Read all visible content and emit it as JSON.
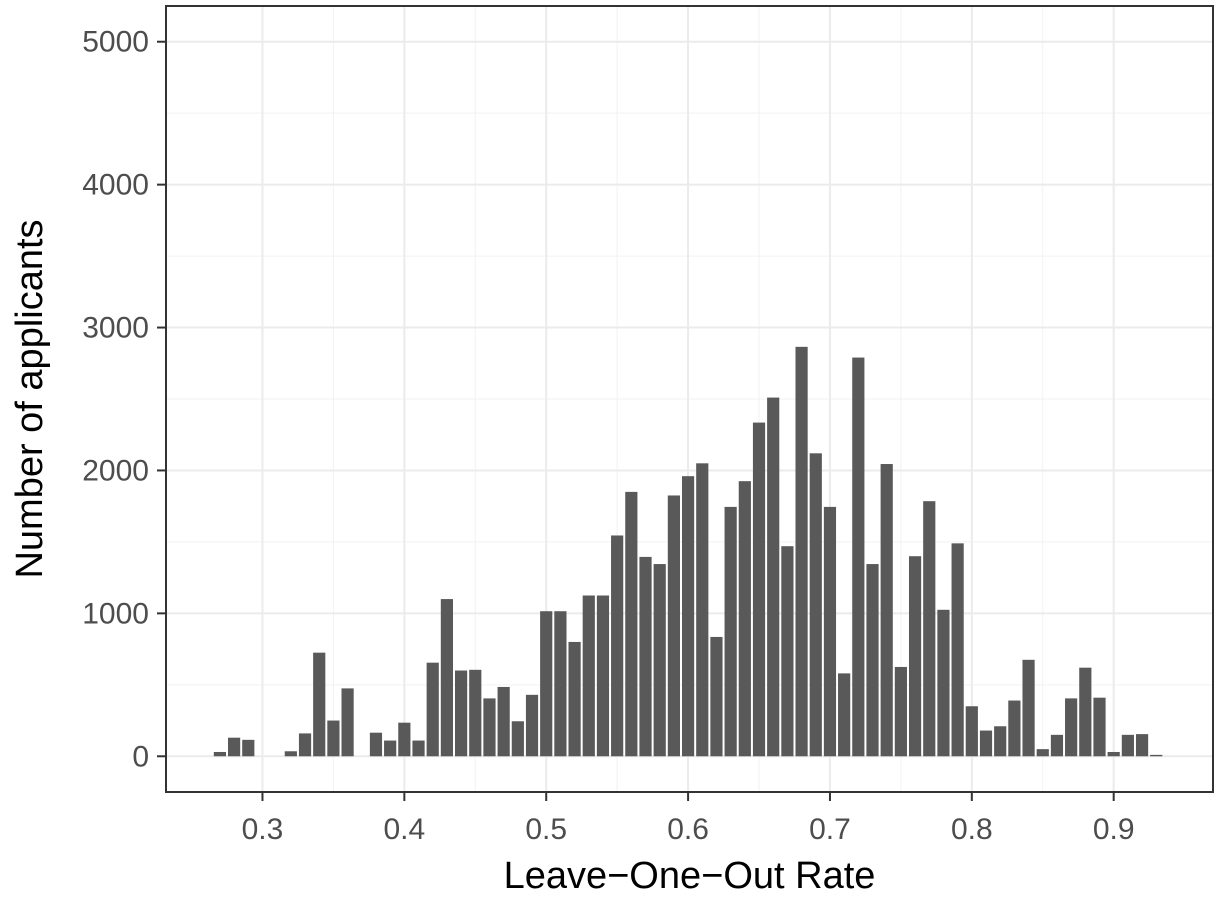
{
  "chart_data": {
    "type": "bar",
    "title": "",
    "xlabel": "Leave−One−Out Rate",
    "ylabel": "Number of applicants",
    "xlim": [
      0.232,
      0.97
    ],
    "ylim": [
      -250,
      5250
    ],
    "x_ticks": [
      0.3,
      0.4,
      0.5,
      0.6,
      0.7,
      0.8,
      0.9
    ],
    "x_tick_labels": [
      "0.3",
      "0.4",
      "0.5",
      "0.6",
      "0.7",
      "0.8",
      "0.9"
    ],
    "y_ticks": [
      0,
      1000,
      2000,
      3000,
      4000,
      5000
    ],
    "y_tick_labels": [
      "0",
      "1000",
      "2000",
      "3000",
      "4000",
      "5000"
    ],
    "bar_width": 0.01,
    "grid": true,
    "bar_color": "#595959",
    "x": [
      0.27,
      0.28,
      0.29,
      0.32,
      0.33,
      0.34,
      0.35,
      0.36,
      0.38,
      0.39,
      0.4,
      0.41,
      0.42,
      0.43,
      0.44,
      0.45,
      0.46,
      0.47,
      0.48,
      0.49,
      0.5,
      0.51,
      0.52,
      0.53,
      0.54,
      0.55,
      0.56,
      0.57,
      0.58,
      0.59,
      0.6,
      0.61,
      0.62,
      0.63,
      0.64,
      0.65,
      0.66,
      0.67,
      0.68,
      0.69,
      0.7,
      0.71,
      0.72,
      0.73,
      0.74,
      0.75,
      0.76,
      0.77,
      0.78,
      0.79,
      0.8,
      0.81,
      0.82,
      0.83,
      0.84,
      0.85,
      0.86,
      0.87,
      0.88,
      0.89,
      0.9,
      0.91,
      0.92,
      0.93
    ],
    "values": [
      30,
      130,
      115,
      35,
      160,
      725,
      250,
      475,
      165,
      110,
      235,
      110,
      655,
      1100,
      600,
      605,
      405,
      485,
      245,
      430,
      1015,
      1015,
      800,
      1125,
      1125,
      1545,
      1850,
      1395,
      1345,
      1825,
      1960,
      2050,
      835,
      1745,
      1925,
      2335,
      2510,
      1470,
      2865,
      2120,
      1745,
      580,
      2790,
      1345,
      2045,
      625,
      1400,
      1785,
      1025,
      1490,
      350,
      180,
      210,
      390,
      675,
      50,
      150,
      405,
      620,
      410,
      30,
      150,
      155,
      10
    ]
  }
}
